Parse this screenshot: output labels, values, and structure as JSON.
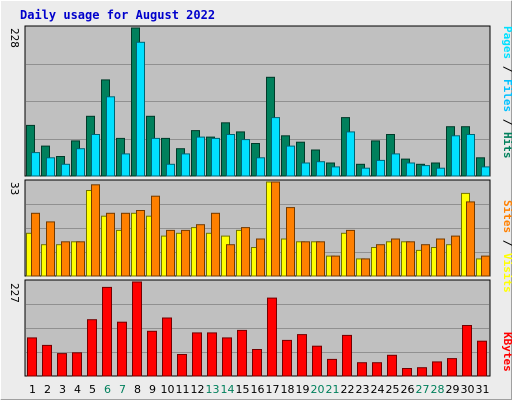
{
  "title": "Daily usage for August 2022",
  "colors": {
    "background": "#ececec",
    "plot_background": "#c0c0c0",
    "gridline": "#909090",
    "title_text": "#0000cc",
    "hits": "#00805c",
    "files": "#00c0ff",
    "pages": "#00e0ff",
    "visits": "#ffff00",
    "sites": "#ff8000",
    "kbytes": "#ff0000",
    "weekend_text": "#00805c",
    "weekday_text": "#000000"
  },
  "chart_data": [
    {
      "type": "bar",
      "panel": "top",
      "ymax_label": "228",
      "ylim": [
        0,
        228
      ],
      "categories": [
        "1",
        "2",
        "3",
        "4",
        "5",
        "6",
        "7",
        "8",
        "9",
        "10",
        "11",
        "12",
        "13",
        "14",
        "15",
        "16",
        "17",
        "18",
        "19",
        "20",
        "21",
        "22",
        "23",
        "24",
        "25",
        "26",
        "27",
        "28",
        "29",
        "30",
        "31"
      ],
      "weekend_days": [
        "6",
        "7",
        "13",
        "14",
        "20",
        "21",
        "27",
        "28"
      ],
      "legend": [
        "Pages",
        "Files",
        "Hits"
      ],
      "series": [
        {
          "name": "Hits",
          "color": "#00805c",
          "values": [
            78,
            46,
            30,
            54,
            92,
            148,
            58,
            228,
            92,
            58,
            42,
            70,
            60,
            82,
            68,
            50,
            152,
            62,
            52,
            40,
            20,
            90,
            18,
            54,
            64,
            26,
            18,
            20,
            76,
            76,
            28
          ]
        },
        {
          "name": "Pages",
          "color": "#00e0ff",
          "values": [
            36,
            28,
            18,
            42,
            64,
            122,
            34,
            206,
            58,
            18,
            34,
            60,
            58,
            64,
            56,
            28,
            90,
            46,
            20,
            22,
            14,
            68,
            12,
            24,
            34,
            20,
            16,
            12,
            62,
            64,
            14
          ]
        }
      ]
    },
    {
      "type": "bar",
      "panel": "middle",
      "ymax_label": "33",
      "ylim": [
        0,
        33
      ],
      "legend": [
        "Sites",
        "Visits"
      ],
      "series": [
        {
          "name": "Visits",
          "color": "#ffff00",
          "values": [
            15,
            11,
            11,
            12,
            30,
            21,
            16,
            22,
            21,
            14,
            15,
            17,
            15,
            14,
            16,
            10,
            33,
            13,
            12,
            12,
            7,
            15,
            6,
            10,
            12,
            12,
            9,
            10,
            11,
            29,
            6
          ]
        },
        {
          "name": "Sites",
          "color": "#ff8000",
          "values": [
            22,
            19,
            12,
            12,
            32,
            22,
            22,
            23,
            28,
            16,
            16,
            18,
            22,
            11,
            17,
            13,
            33,
            24,
            12,
            12,
            7,
            16,
            6,
            11,
            13,
            12,
            11,
            13,
            14,
            26,
            7
          ]
        }
      ]
    },
    {
      "type": "bar",
      "panel": "bottom",
      "ymax_label": "227",
      "ylim": [
        0,
        227
      ],
      "legend": [
        "KBytes"
      ],
      "series": [
        {
          "name": "KBytes",
          "color": "#ff0000",
          "values": [
            92,
            74,
            54,
            56,
            136,
            214,
            130,
            227,
            108,
            140,
            52,
            104,
            104,
            92,
            110,
            64,
            188,
            86,
            100,
            72,
            40,
            98,
            32,
            32,
            50,
            18,
            20,
            34,
            42,
            122,
            84
          ]
        }
      ]
    }
  ]
}
